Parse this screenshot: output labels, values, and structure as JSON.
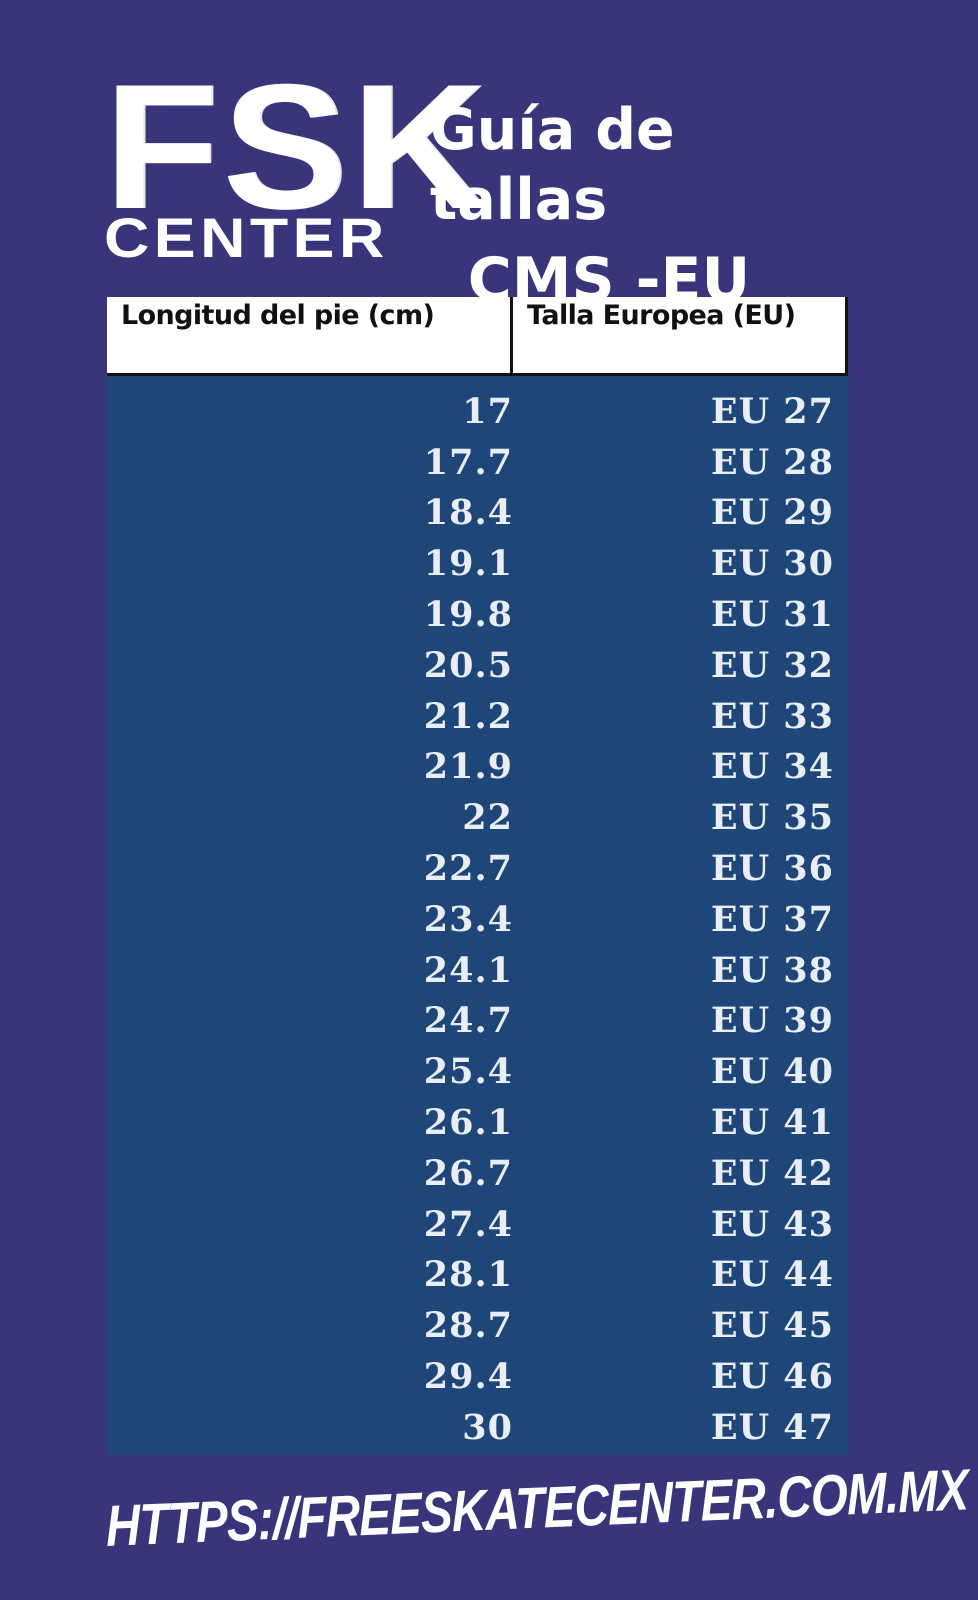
{
  "logo": {
    "line1": "FSK",
    "line2": "CENTER"
  },
  "title": {
    "line1": "Guía de tallas",
    "line2": "CMS -EU"
  },
  "table": {
    "headers": [
      "Longitud del pie (cm)",
      "Talla Europea (EU)"
    ],
    "rows": [
      [
        "17",
        "EU 27"
      ],
      [
        "17.7",
        "EU 28"
      ],
      [
        "18.4",
        "EU 29"
      ],
      [
        "19.1",
        "EU 30"
      ],
      [
        "19.8",
        "EU 31"
      ],
      [
        "20.5",
        "EU 32"
      ],
      [
        "21.2",
        "EU 33"
      ],
      [
        "21.9",
        "EU 34"
      ],
      [
        "22",
        "EU 35"
      ],
      [
        "22.7",
        "EU 36"
      ],
      [
        "23.4",
        "EU 37"
      ],
      [
        "24.1",
        "EU 38"
      ],
      [
        "24.7",
        "EU 39"
      ],
      [
        "25.4",
        "EU 40"
      ],
      [
        "26.1",
        "EU 41"
      ],
      [
        "26.7",
        "EU 42"
      ],
      [
        "27.4",
        "EU 43"
      ],
      [
        "28.1",
        "EU 44"
      ],
      [
        "28.7",
        "EU 45"
      ],
      [
        "29.4",
        "EU 46"
      ],
      [
        "30",
        "EU 47"
      ]
    ]
  },
  "footer": {
    "url": "HTTPS://FREESKATECENTER.COM.MX"
  },
  "colors": {
    "background": "#38357a",
    "table_body": "#1f4679",
    "header_bg": "#ffffff",
    "text": "#ffffff"
  }
}
